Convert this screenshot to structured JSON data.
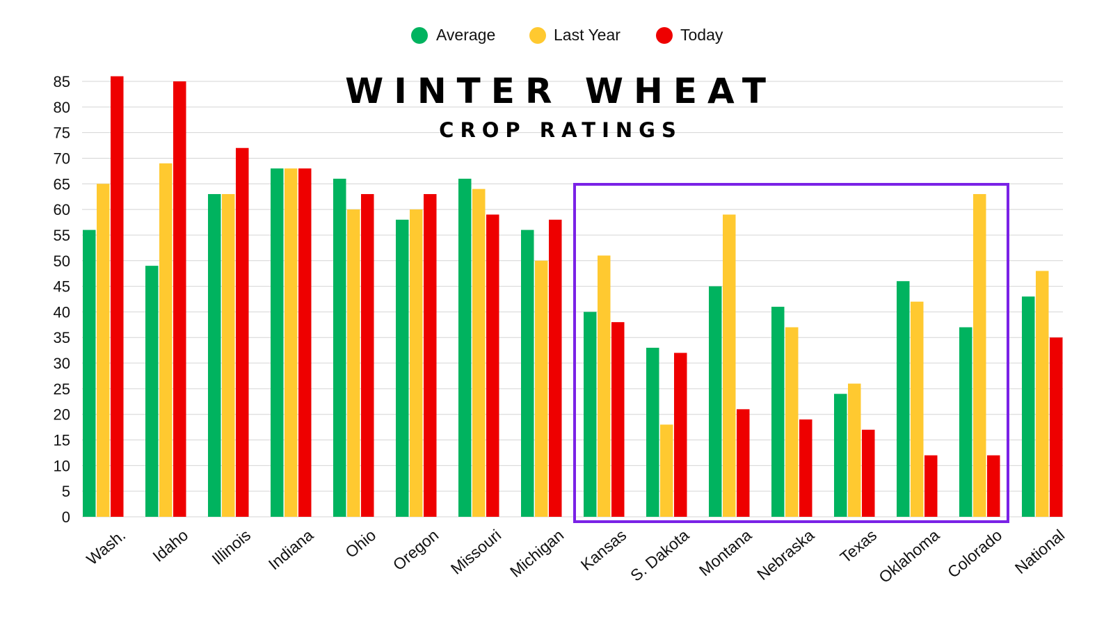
{
  "chart_data": {
    "type": "bar",
    "title": "WINTER WHEAT",
    "subtitle": "CROP RATINGS",
    "xlabel": "",
    "ylabel": "",
    "ylim": [
      0,
      85
    ],
    "yticks": [
      0,
      5,
      10,
      15,
      20,
      25,
      30,
      35,
      40,
      45,
      50,
      55,
      60,
      65,
      70,
      75,
      80,
      85
    ],
    "grid": true,
    "legend_position": "top",
    "categories": [
      "Wash.",
      "Idaho",
      "Illinois",
      "Indiana",
      "Ohio",
      "Oregon",
      "Missouri",
      "Michigan",
      "Kansas",
      "S. Dakota",
      "Montana",
      "Nebraska",
      "Texas",
      "Oklahoma",
      "Colorado",
      "National"
    ],
    "series": [
      {
        "name": "Average",
        "color": "#00b35f",
        "values": [
          56,
          49,
          63,
          68,
          66,
          58,
          66,
          56,
          40,
          33,
          45,
          41,
          24,
          46,
          37,
          43
        ]
      },
      {
        "name": "Last Year",
        "color": "#ffc930",
        "values": [
          65,
          69,
          63,
          68,
          60,
          60,
          64,
          50,
          51,
          18,
          59,
          37,
          26,
          42,
          63,
          48
        ]
      },
      {
        "name": "Today",
        "color": "#ee0000",
        "values": [
          86,
          85,
          72,
          68,
          63,
          63,
          59,
          58,
          38,
          32,
          21,
          19,
          17,
          12,
          12,
          35
        ]
      }
    ],
    "highlight": {
      "from_category": "Kansas",
      "to_category": "Colorado",
      "color": "#7a22e6"
    }
  }
}
